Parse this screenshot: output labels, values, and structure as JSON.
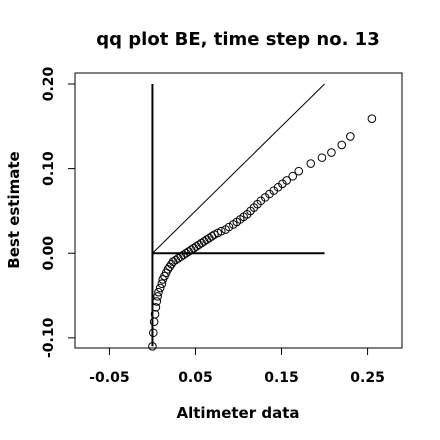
{
  "chart_data": {
    "type": "scatter",
    "title": "qq plot BE, time step no. 13",
    "xlabel": "Altimeter data",
    "ylabel": "Best estimate",
    "xlim": [
      -0.09,
      0.29
    ],
    "ylim": [
      -0.112,
      0.213
    ],
    "x_ticks": [
      -0.05,
      0.05,
      0.15,
      0.25
    ],
    "x_tick_labels": [
      "-0.05",
      "0.05",
      "0.15",
      "0.25"
    ],
    "y_ticks": [
      -0.1,
      0.0,
      0.1,
      0.2
    ],
    "y_tick_labels": [
      "-0.10",
      "0.00",
      "0.10",
      "0.20"
    ],
    "grid": false,
    "legend": "none",
    "reference_lines": [
      {
        "name": "identity",
        "x": [
          0.0,
          0.2
        ],
        "y": [
          0.0,
          0.2
        ]
      },
      {
        "name": "vertical",
        "x": [
          0.0,
          0.0
        ],
        "y": [
          -0.11,
          0.2
        ]
      },
      {
        "name": "horizontal",
        "x": [
          0.0,
          0.2
        ],
        "y": [
          0.0,
          0.0
        ]
      }
    ],
    "points": [
      [
        0.0,
        -0.11
      ],
      [
        0.001,
        -0.094
      ],
      [
        0.002,
        -0.081
      ],
      [
        0.003,
        -0.072
      ],
      [
        0.004,
        -0.064
      ],
      [
        0.005,
        -0.057
      ],
      [
        0.006,
        -0.051
      ],
      [
        0.007,
        -0.046
      ],
      [
        0.009,
        -0.041
      ],
      [
        0.011,
        -0.036
      ],
      [
        0.012,
        -0.031
      ],
      [
        0.014,
        -0.027
      ],
      [
        0.016,
        -0.023
      ],
      [
        0.018,
        -0.019
      ],
      [
        0.02,
        -0.016
      ],
      [
        0.022,
        -0.013
      ],
      [
        0.024,
        -0.01
      ],
      [
        0.027,
        -0.008
      ],
      [
        0.03,
        -0.006
      ],
      [
        0.033,
        -0.004
      ],
      [
        0.036,
        -0.002
      ],
      [
        0.039,
        0.0
      ],
      [
        0.042,
        0.002
      ],
      [
        0.045,
        0.004
      ],
      [
        0.048,
        0.006
      ],
      [
        0.051,
        0.008
      ],
      [
        0.054,
        0.01
      ],
      [
        0.057,
        0.012
      ],
      [
        0.06,
        0.014
      ],
      [
        0.063,
        0.016
      ],
      [
        0.066,
        0.018
      ],
      [
        0.069,
        0.02
      ],
      [
        0.072,
        0.022
      ],
      [
        0.076,
        0.024
      ],
      [
        0.08,
        0.026
      ],
      [
        0.085,
        0.028
      ],
      [
        0.089,
        0.031
      ],
      [
        0.094,
        0.034
      ],
      [
        0.098,
        0.037
      ],
      [
        0.102,
        0.04
      ],
      [
        0.106,
        0.043
      ],
      [
        0.11,
        0.046
      ],
      [
        0.114,
        0.05
      ],
      [
        0.118,
        0.054
      ],
      [
        0.122,
        0.058
      ],
      [
        0.126,
        0.062
      ],
      [
        0.131,
        0.066
      ],
      [
        0.136,
        0.07
      ],
      [
        0.141,
        0.074
      ],
      [
        0.146,
        0.078
      ],
      [
        0.151,
        0.082
      ],
      [
        0.156,
        0.086
      ],
      [
        0.163,
        0.091
      ],
      [
        0.17,
        0.097
      ],
      [
        0.184,
        0.106
      ],
      [
        0.197,
        0.113
      ],
      [
        0.208,
        0.119
      ],
      [
        0.22,
        0.128
      ],
      [
        0.23,
        0.138
      ],
      [
        0.255,
        0.159
      ]
    ]
  }
}
